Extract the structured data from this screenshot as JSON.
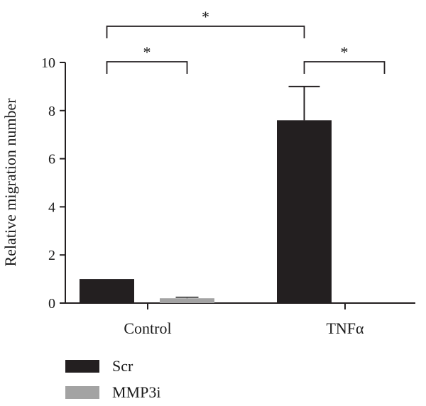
{
  "chart_data": {
    "type": "bar",
    "ylabel": "Relative migration number",
    "xlabel": "",
    "categories": [
      "Control",
      "TNFα"
    ],
    "ylim": [
      0,
      10
    ],
    "yticks": [
      0,
      2,
      4,
      6,
      8,
      10
    ],
    "grid": false,
    "legend_position": "bottom-left",
    "series": [
      {
        "name": "Scr",
        "color": "#231f20",
        "values": [
          1.0,
          7.6
        ],
        "errors": [
          0.0,
          1.4
        ]
      },
      {
        "name": "MMP3i",
        "color": "#a3a3a3",
        "values": [
          0.2,
          0.0
        ],
        "errors": [
          0.04,
          0.0
        ]
      }
    ],
    "significance": [
      {
        "from": [
          0,
          0
        ],
        "to": [
          0,
          1
        ],
        "level": "lower",
        "label": "*"
      },
      {
        "from": [
          1,
          0
        ],
        "to": [
          1,
          1
        ],
        "level": "lower",
        "label": "*"
      },
      {
        "from": [
          0,
          0
        ],
        "to": [
          1,
          0
        ],
        "level": "upper",
        "label": "*"
      }
    ]
  }
}
